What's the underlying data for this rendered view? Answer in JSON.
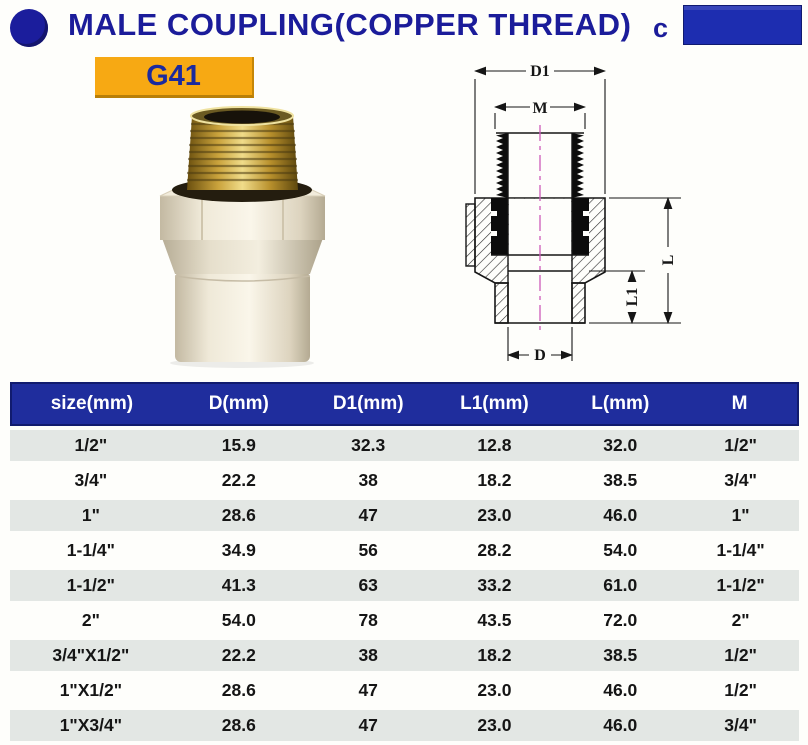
{
  "header": {
    "title": "MALE COUPLING(COPPER THREAD)",
    "suffix": "c"
  },
  "badge": {
    "code": "G41"
  },
  "diagram": {
    "labels": {
      "d1": "D1",
      "m": "M",
      "l": "L",
      "l1": "L1",
      "d": "D"
    }
  },
  "table": {
    "columns": [
      "size(mm)",
      "D(mm)",
      "D1(mm)",
      "L1(mm)",
      "L(mm)",
      "M"
    ],
    "rows": [
      [
        "1/2\"",
        "15.9",
        "32.3",
        "12.8",
        "32.0",
        "1/2\""
      ],
      [
        "3/4\"",
        "22.2",
        "38",
        "18.2",
        "38.5",
        "3/4\""
      ],
      [
        "1\"",
        "28.6",
        "47",
        "23.0",
        "46.0",
        "1\""
      ],
      [
        "1-1/4\"",
        "34.9",
        "56",
        "28.2",
        "54.0",
        "1-1/4\""
      ],
      [
        "1-1/2\"",
        "41.3",
        "63",
        "33.2",
        "61.0",
        "1-1/2\""
      ],
      [
        "2\"",
        "54.0",
        "78",
        "43.5",
        "72.0",
        "2\""
      ],
      [
        "3/4\"X1/2\"",
        "22.2",
        "38",
        "18.2",
        "38.5",
        "1/2\""
      ],
      [
        "1\"X1/2\"",
        "28.6",
        "47",
        "23.0",
        "46.0",
        "1/2\""
      ],
      [
        "1\"X3/4\"",
        "28.6",
        "47",
        "23.0",
        "46.0",
        "3/4\""
      ]
    ]
  },
  "colors": {
    "navy_text": "#1b1c9a",
    "logo_blue": "#1d2db0",
    "badge_orange": "#f7a913",
    "table_header_blue": "#1f2d9d",
    "row_stripe": "#e3e7e4",
    "centerline_magenta": "#cc5cb8",
    "brass": "#caa33c",
    "body_cream": "#efe9d8"
  }
}
